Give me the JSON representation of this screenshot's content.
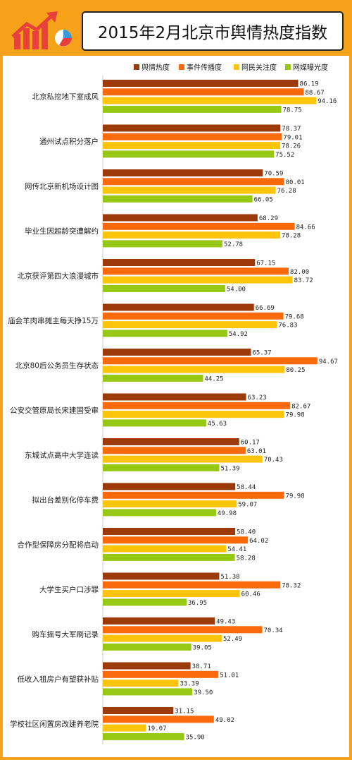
{
  "title": "2015年2月北京市舆情热度指数",
  "colors": {
    "border": "#f5a21a",
    "header": "#f5a21a"
  },
  "chart_data": {
    "type": "bar",
    "orientation": "horizontal",
    "title": "2015年2月北京市舆情热度指数",
    "legend_position": "top-right",
    "grid": false,
    "xlim": [
      0,
      100
    ],
    "categories": [
      "北京私挖地下室成风",
      "通州试点积分落户",
      "网传北京新机场设计图",
      "毕业生因超龄突遭解约",
      "北京获评第四大浪漫城市",
      "庙会羊肉串摊主每天挣15万",
      "北京80后公务员生存状态",
      "公安交管原局长宋建国受审",
      "东城试点高中大学连读",
      "拟出台差别化停车费",
      "合作型保障房分配将启动",
      "大学生买户口涉罪",
      "购车摇号大军刷记录",
      "低收入租房户有望获补贴",
      "学校社区闲置房改建养老院"
    ],
    "series": [
      {
        "name": "舆情热度",
        "color": "#9c3a0a",
        "values": [
          86.19,
          78.37,
          70.59,
          68.29,
          67.15,
          66.69,
          65.37,
          63.23,
          60.17,
          58.44,
          58.4,
          51.38,
          49.43,
          38.71,
          31.15
        ]
      },
      {
        "name": "事件传播度",
        "color": "#fa6a0a",
        "values": [
          88.67,
          79.01,
          80.01,
          84.66,
          82.0,
          79.68,
          94.67,
          82.67,
          63.01,
          79.98,
          64.02,
          78.32,
          70.34,
          51.01,
          49.02
        ]
      },
      {
        "name": "网民关注度",
        "color": "#fcc40a",
        "values": [
          94.16,
          78.26,
          76.28,
          78.28,
          83.72,
          76.83,
          80.25,
          79.98,
          70.43,
          59.07,
          54.41,
          60.46,
          52.49,
          33.39,
          19.07
        ]
      },
      {
        "name": "网媒曝光度",
        "color": "#96c814",
        "values": [
          78.75,
          75.52,
          66.05,
          52.78,
          54.0,
          54.92,
          44.25,
          45.63,
          51.39,
          49.98,
          58.28,
          36.95,
          39.05,
          39.5,
          35.9
        ]
      }
    ]
  }
}
